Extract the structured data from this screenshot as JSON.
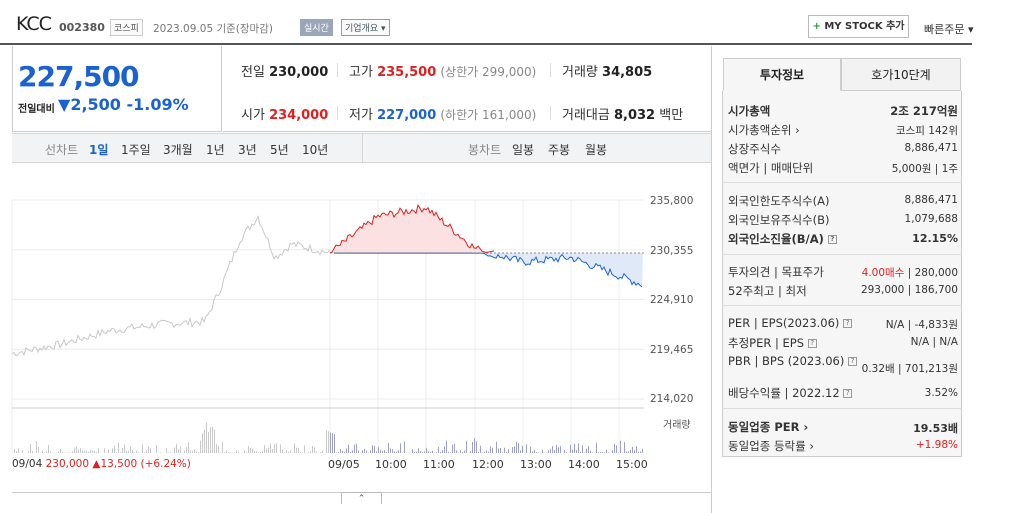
{
  "header": {
    "name": "KCC",
    "code": "002380",
    "market": "코스피",
    "date": "2023.09.05 기준(장마감)",
    "realtime": "실시간",
    "company": "기업개요 ▾",
    "mystock_plus": "+",
    "mystock": "MY STOCK 추가",
    "quick": "빠른주문 ▾"
  },
  "price": {
    "current": "227,500",
    "chg_label": "전일대비",
    "chg_arrow": "▼",
    "chg_value": "2,500",
    "chg_pct": "-1.09%"
  },
  "quote": {
    "prev_label": "전일",
    "prev": "230,000",
    "high_label": "고가",
    "high": "235,500",
    "upper_limit": "(상한가 299,000)",
    "volume_label": "거래량",
    "volume": "34,805",
    "open_label": "시가",
    "open": "234,000",
    "low_label": "저가",
    "low": "227,000",
    "lower_limit": "(하한가 161,000)",
    "amount_label": "거래대금",
    "amount": "8,032",
    "amount_unit": "백만"
  },
  "tabs": {
    "line_label": "선차트",
    "line": [
      "1일",
      "1주일",
      "3개월",
      "1년",
      "3년",
      "5년",
      "10년"
    ],
    "candle_label": "봉차트",
    "candle": [
      "일봉",
      "주봉",
      "월봉"
    ]
  },
  "chart": {
    "y_labels": [
      "235,800",
      "230,355",
      "224,910",
      "219,465",
      "214,020"
    ],
    "x_labels": [
      "09/05",
      "10:00",
      "11:00",
      "12:00",
      "13:00",
      "14:00",
      "15:00"
    ],
    "vol_label": "거래량",
    "prev_date": "09/04",
    "prev_close": "230,000",
    "prev_chg": "▲13,500 (+6.24%)",
    "toggle": "⌃"
  },
  "chart_data": {
    "type": "line",
    "title": "",
    "x": [
      "09/05",
      "10:00",
      "11:00",
      "12:00",
      "13:00",
      "14:00",
      "15:00"
    ],
    "series": [
      {
        "values": [
          230000,
          234000,
          235000,
          230500,
          229000,
          229500,
          227500
        ]
      }
    ],
    "ylim": [
      214020,
      235800
    ],
    "baseline": 230000
  },
  "panel": {
    "tab_on": "투자정보",
    "tab_off": "호가10단계",
    "market_cap_label": "시가총액",
    "market_cap": "2조 217억원",
    "rank_label": "시가총액순위 ›",
    "rank": "코스피 142위",
    "shares_label": "상장주식수",
    "shares": "8,886,471",
    "par_label": "액면가 | 매매단위",
    "par": "5,000원 | 1주",
    "foreign_a_label": "외국인한도주식수(A)",
    "foreign_a": "8,886,471",
    "foreign_b_label": "외국인보유주식수(B)",
    "foreign_b": "1,079,688",
    "foreign_ratio_label": "외국인소진율(B/A)",
    "foreign_ratio": "12.15%",
    "opinion_label": "투자의견 | 목표주가",
    "opinion": "4.00매수",
    "target": "| 280,000",
    "w52_label": "52주최고 | 최저",
    "w52": "293,000 | 186,700",
    "per_label": "PER | EPS(2023.06)",
    "per": "N/A | -4,833원",
    "eper_label": "추정PER | EPS",
    "eper": "N/A | N/A",
    "pbr_label": "PBR | BPS (2023.06)",
    "pbr": "0.32배 | 701,213원",
    "div_label": "배당수익률 | 2022.12",
    "div": "3.52%",
    "ind_per_label": "동일업종 PER ›",
    "ind_per": "19.53배",
    "ind_rate_label": "동일업종 등락률 ›",
    "ind_rate": "+1.98%"
  }
}
